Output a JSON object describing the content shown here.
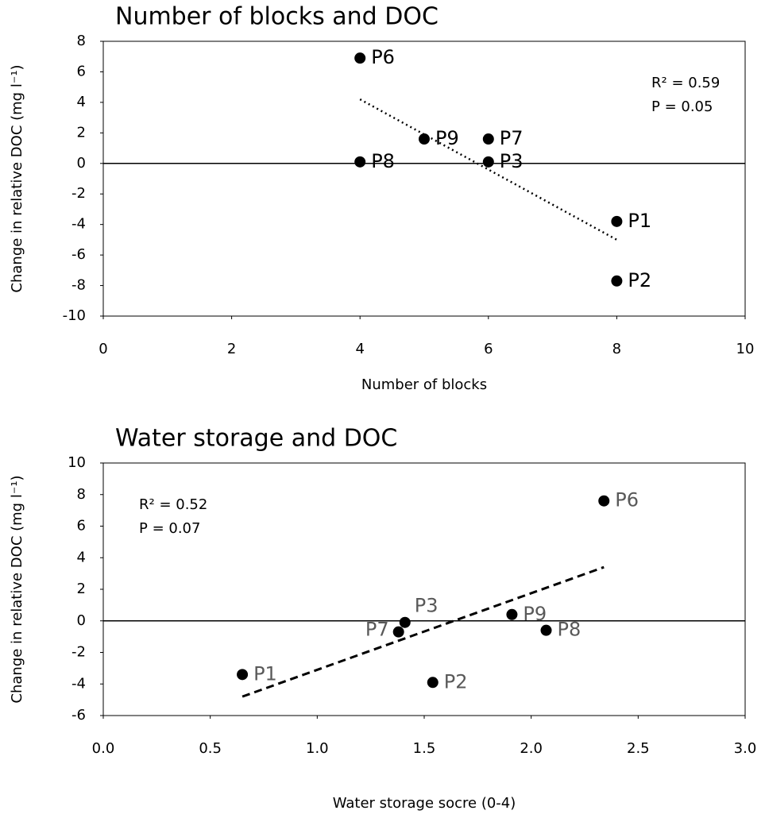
{
  "chart_data": [
    {
      "type": "scatter",
      "title": "Number of blocks and DOC",
      "x_label": "Number of blocks",
      "y_label": "Change in relative DOC (mg l⁻¹)",
      "x": [
        4,
        5,
        6,
        4,
        6,
        8,
        8
      ],
      "values": [
        6.9,
        1.6,
        1.6,
        0.1,
        0.1,
        -3.8,
        -7.7
      ],
      "labels": [
        "P6",
        "P9",
        "P7",
        "P8",
        "P3",
        "P1",
        "P2"
      ],
      "label_color": "#000000",
      "color": "#000000",
      "xlim": [
        0,
        10
      ],
      "xticks": [
        0,
        2,
        4,
        6,
        8,
        10
      ],
      "ylim": [
        -10,
        8
      ],
      "yticks": [
        -10,
        -8,
        -6,
        -4,
        -2,
        0,
        2,
        4,
        6,
        8
      ],
      "trendline": {
        "x": [
          4,
          8
        ],
        "y": [
          4.2,
          -5.0
        ],
        "style": "dotted"
      },
      "annotations": [
        "R² = 0.59",
        "P = 0.05"
      ],
      "annotation_corner": "top-right"
    },
    {
      "type": "scatter",
      "title": "Water storage and DOC",
      "x_label": "Water storage socre (0-4)",
      "y_label": "Change in relative DOC (mg l⁻¹)",
      "x": [
        2.34,
        1.91,
        1.38,
        2.07,
        1.41,
        0.65,
        1.54
      ],
      "values": [
        7.6,
        0.4,
        -0.7,
        -0.6,
        -0.1,
        -3.4,
        -3.9
      ],
      "labels": [
        "P6",
        "P9",
        "P7",
        "P8",
        "P3",
        "P1",
        "P2"
      ],
      "label_color": "#595959",
      "color": "#000000",
      "xlim": [
        0,
        3
      ],
      "xticks": [
        {
          "value": 0,
          "label": "0.0"
        },
        0.5,
        {
          "value": 1,
          "label": "1.0"
        },
        1.5,
        {
          "value": 2,
          "label": "2.0"
        },
        2.5,
        {
          "value": 3,
          "label": "3.0"
        }
      ],
      "ylim": [
        -6,
        10
      ],
      "yticks": [
        -6,
        -4,
        -2,
        0,
        2,
        4,
        6,
        8,
        10
      ],
      "trendline": {
        "x": [
          0.65,
          2.34
        ],
        "y": [
          -4.8,
          3.4
        ],
        "style": "dashed"
      },
      "annotations": [
        "R² = 0.52",
        "P = 0.07"
      ],
      "annotation_corner": "top-left"
    }
  ]
}
